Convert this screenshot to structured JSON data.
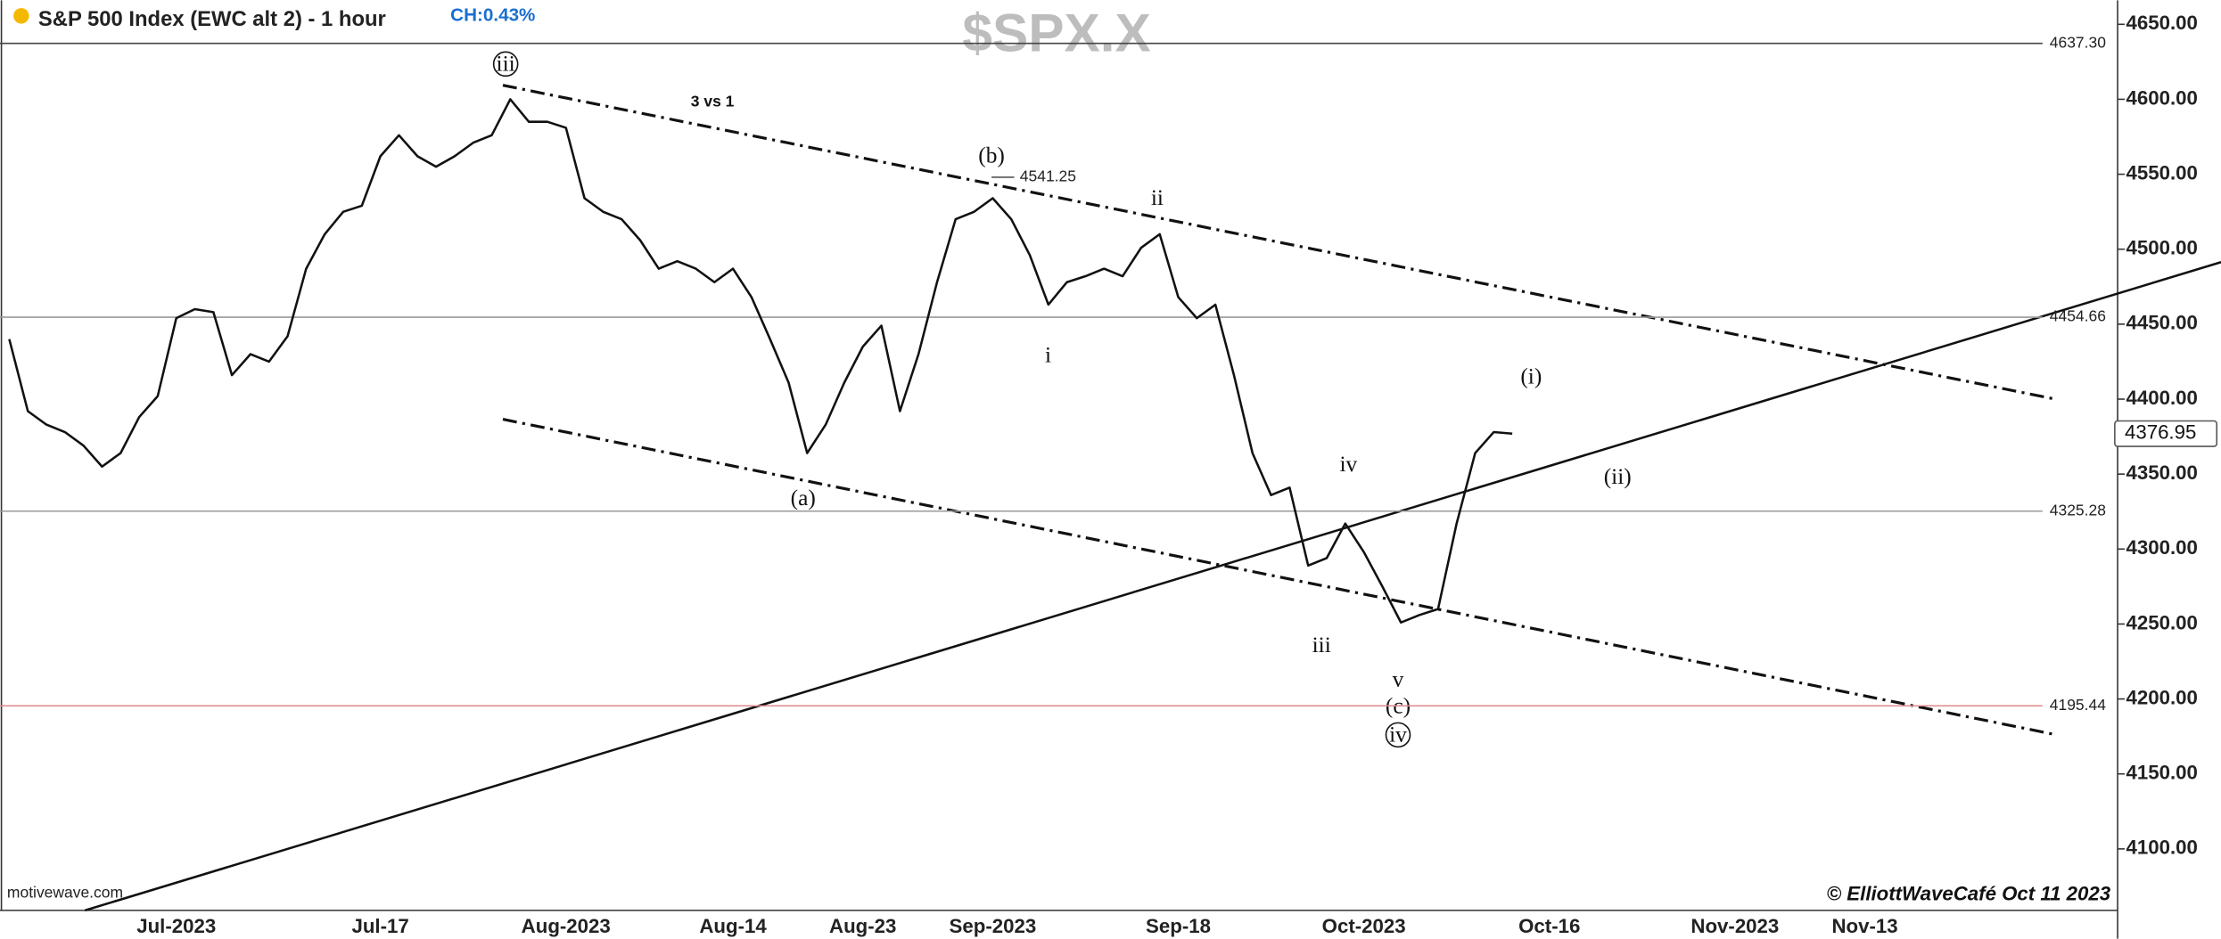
{
  "chart_data": {
    "type": "line",
    "title": "S&P 500 Index (EWC alt 2) - 1 hour",
    "change_label": "CH:0.43%",
    "symbol": "$SPX.X",
    "source": "motivewave.com",
    "copyright": "© ElliottWaveCafé Oct 11  2023",
    "categories": [
      null,
      null,
      null,
      null,
      null,
      null,
      null,
      null,
      null,
      "Jul-2023",
      null,
      null,
      null,
      null,
      null,
      null,
      null,
      null,
      null,
      null,
      "Jul-17",
      null,
      null,
      null,
      null,
      null,
      null,
      null,
      null,
      null,
      "Aug-2023",
      null,
      null,
      null,
      null,
      null,
      null,
      null,
      null,
      "Aug-14",
      null,
      null,
      null,
      null,
      null,
      null,
      "Aug-23",
      null,
      null,
      null,
      null,
      null,
      null,
      "Sep-2023",
      null,
      null,
      null,
      null,
      null,
      null,
      null,
      null,
      null,
      "Sep-18",
      null,
      null,
      null,
      null,
      null,
      null,
      null,
      null,
      null,
      "Oct-2023",
      null,
      null,
      null,
      null,
      null,
      null,
      null,
      null,
      null,
      "Oct-16",
      null,
      null,
      null,
      null,
      null,
      null,
      null,
      null,
      null,
      "Nov-2023",
      null,
      null,
      null,
      null,
      null,
      null,
      "Nov-13",
      null,
      null,
      null,
      null,
      null,
      null,
      null,
      null,
      null,
      null,
      null,
      null,
      null
    ],
    "series": [
      {
        "name": "$SPX.X",
        "color": "#111111",
        "values": [
          4440,
          4392,
          4383,
          4378,
          4369,
          4355,
          4364,
          4388,
          4402,
          4454,
          4460,
          4458,
          4416,
          4430,
          4425,
          4442,
          4487,
          4510,
          4525,
          4529,
          4562,
          4576,
          4562,
          4555,
          4562,
          4571,
          4576,
          4600,
          4585,
          4585,
          4581,
          4534,
          4525,
          4520,
          4506,
          4487,
          4492,
          4487,
          4478,
          4487,
          4468,
          4440,
          4411,
          4364,
          4383,
          4411,
          4435,
          4449,
          4392,
          4430,
          4478,
          4520,
          4525,
          4534,
          4520,
          4496,
          4463,
          4478,
          4482,
          4487,
          4482,
          4501,
          4510,
          4468,
          4454,
          4463,
          4416,
          4364,
          4336,
          4341,
          4289,
          4294,
          4317,
          4298,
          4275,
          4251,
          4256,
          4260,
          4317,
          4364,
          4378,
          4377,
          null,
          null,
          null,
          null,
          null,
          null,
          null,
          null,
          null,
          null,
          null,
          null,
          null,
          null,
          null,
          null,
          null,
          null,
          null,
          null,
          null,
          null,
          null,
          null,
          null,
          null,
          null,
          null,
          null,
          null,
          null,
          null
        ]
      }
    ],
    "ylim": [
      4059,
      4666
    ],
    "yticks": [
      {
        "value": 4100,
        "label": "4100.00"
      },
      {
        "value": 4150,
        "label": "4150.00"
      },
      {
        "value": 4200,
        "label": "4200.00"
      },
      {
        "value": 4250,
        "label": "4250.00"
      },
      {
        "value": 4300,
        "label": "4300.00"
      },
      {
        "value": 4350,
        "label": "4350.00"
      },
      {
        "value": 4400,
        "label": "4400.00"
      },
      {
        "value": 4450,
        "label": "4450.00"
      },
      {
        "value": 4500,
        "label": "4500.00"
      },
      {
        "value": 4550,
        "label": "4550.00"
      },
      {
        "value": 4600,
        "label": "4600.00"
      },
      {
        "value": 4650,
        "label": "4650.00"
      }
    ],
    "reference_lines": [
      {
        "value": 4637.3,
        "label": "4637.30",
        "color": "#444444"
      },
      {
        "value": 4454.66,
        "label": "4454.66",
        "color": "#999999"
      },
      {
        "value": 4325.28,
        "label": "4325.28",
        "color": "#999999"
      },
      {
        "value": 4195.44,
        "label": "4195.44",
        "color": "#e08a8a"
      }
    ],
    "last_price": {
      "value": 4376.95,
      "label": "4376.95"
    },
    "annotations": [
      "iii",
      "3 vs 1",
      "(b)",
      "4541.25",
      "ii",
      "i",
      "(a)",
      "iv",
      "iii",
      "v",
      "(c)",
      "iv",
      "(i)",
      "(ii)"
    ]
  }
}
